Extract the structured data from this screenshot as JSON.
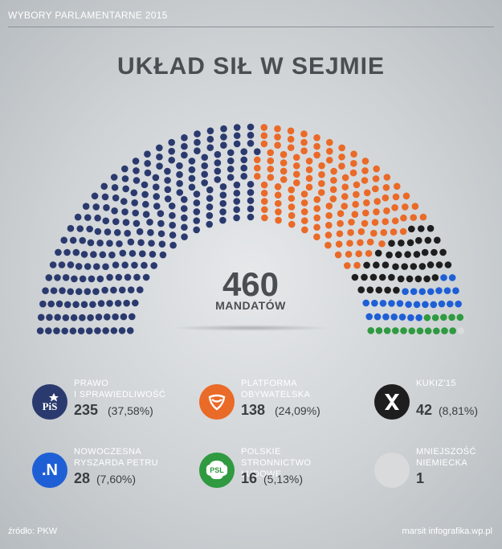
{
  "header": {
    "label": "WYBORY PARLAMENTARNE 2015"
  },
  "total": {
    "value": "460",
    "label": "MANDATÓW"
  },
  "legend": [
    {
      "name_line1": "PRAWO",
      "name_line2": "I SPRAWIEDLIWOŚĆ",
      "seats": "235",
      "pct": "(37,58%)",
      "color": "#2b3a6e",
      "icon": "pis-logo",
      "logo_text": "PiS"
    },
    {
      "name_line1": "PLATFORMA",
      "name_line2": "OBYWATELSKA",
      "seats": "138",
      "pct": "(24,09%)",
      "color": "#ea6a28",
      "icon": "po-logo",
      "logo_text": ""
    },
    {
      "name_line1": "KUKIZ'15",
      "name_line2": "",
      "seats": "42",
      "pct": "(8,81%)",
      "color": "#1e1e1e",
      "icon": "kukiz-logo",
      "logo_text": "X"
    },
    {
      "name_line1": "NOWOCZESNA",
      "name_line2": "RYSZARDA PETRU",
      "seats": "28",
      "pct": "(7,60%)",
      "color": "#1f5fd6",
      "icon": "nowoczesna-logo",
      "logo_text": ".N"
    },
    {
      "name_line1": "POLSKIE STRONNICTWO",
      "name_line2": "LUDOWE",
      "seats": "16",
      "pct": "(5,13%)",
      "color": "#2f9a40",
      "icon": "psl-logo",
      "logo_text": "PSL"
    },
    {
      "name_line1": "MNIEJSZOŚĆ",
      "name_line2": "NIEMIECKA",
      "seats": "1",
      "pct": "",
      "color": "#d9dadb",
      "icon": "mniejszosc-logo",
      "logo_text": ""
    }
  ],
  "footer": {
    "source": "źródło: PKW",
    "credit": "marsit infografika.wp.pl"
  },
  "chart_data": {
    "type": "parliament",
    "title": "UKŁAD SIŁ W SEJMIE",
    "total": 460,
    "categories": [
      "PRAWO I SPRAWIEDLIWOŚĆ",
      "PLATFORMA OBYWATELSKA",
      "KUKIZ'15",
      "NOWOCZESNA RYSZARDA PETRU",
      "POLSKIE STRONNICTWO LUDOWE",
      "MNIEJSZOŚĆ NIEMIECKA"
    ],
    "values": [
      235,
      138,
      42,
      28,
      16,
      1
    ],
    "percentages": [
      37.58,
      24.09,
      8.81,
      7.6,
      5.13,
      null
    ],
    "colors": [
      "#2b3a6e",
      "#ea6a28",
      "#1e1e1e",
      "#1f5fd6",
      "#2f9a40",
      "#d9dadb"
    ]
  }
}
